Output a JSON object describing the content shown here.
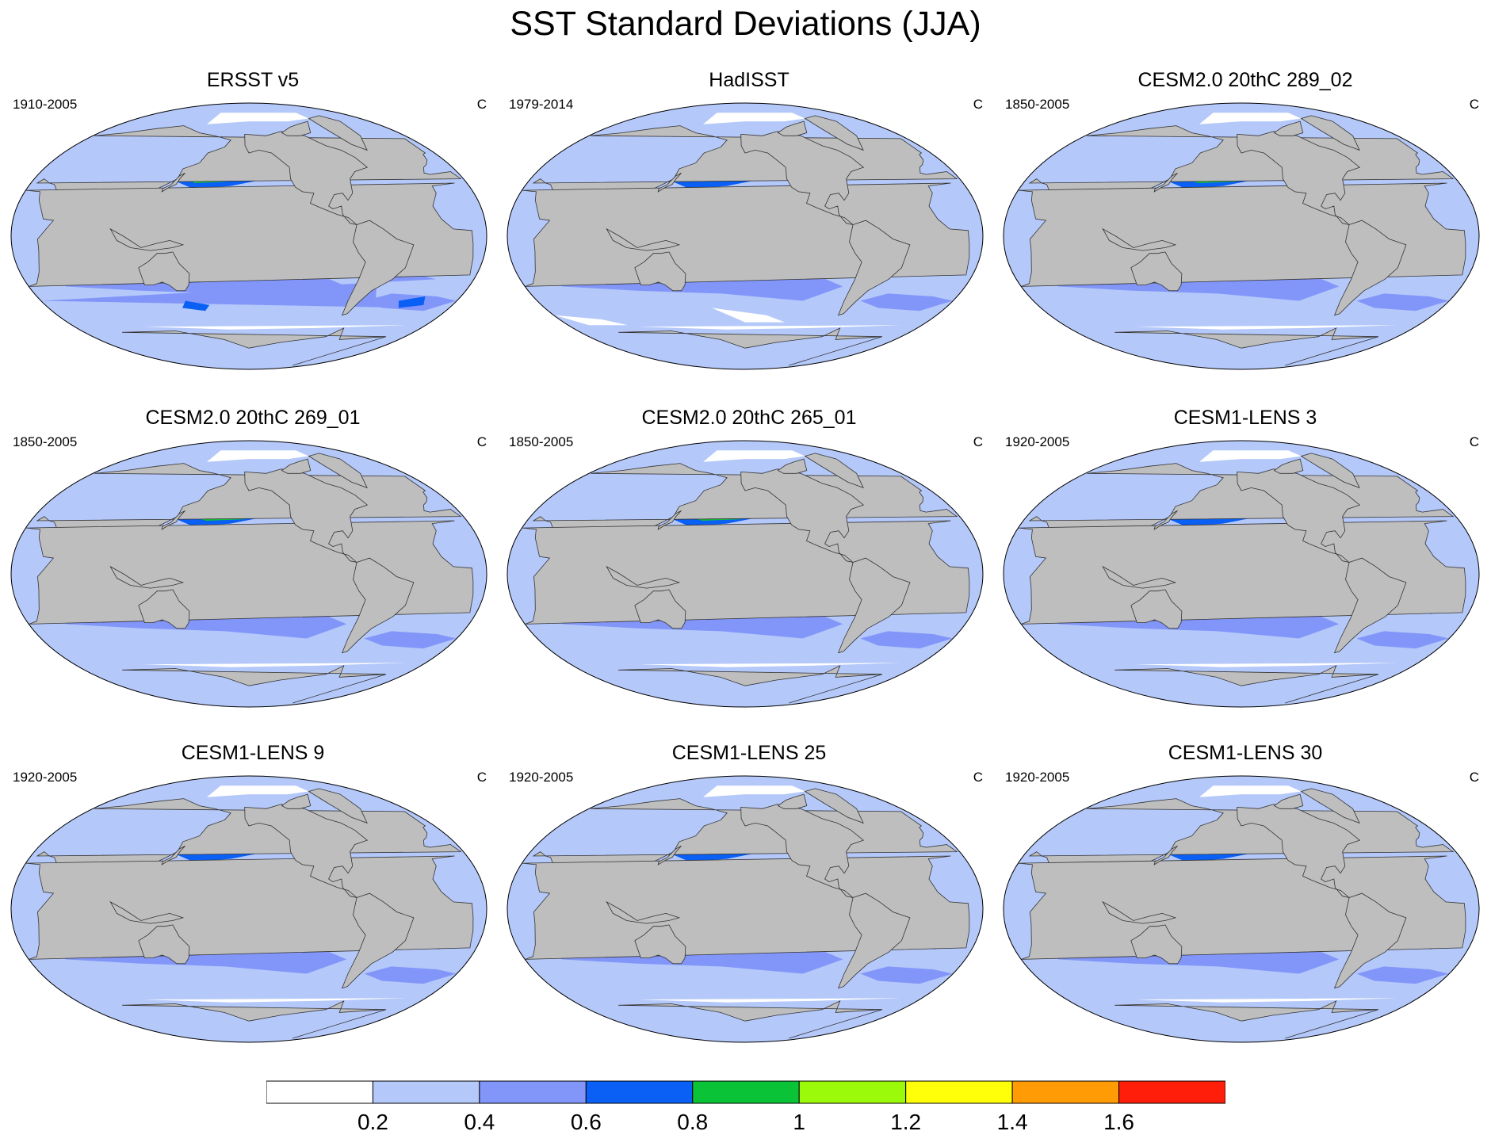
{
  "figure": {
    "title": "SST Standard Deviations (JJA)"
  },
  "panels": [
    {
      "title": "ERSST v5",
      "period": "1910-2005",
      "units": "C",
      "style": "ersst"
    },
    {
      "title": "HadISST",
      "period": "1979-2014",
      "units": "C",
      "style": "hadisst"
    },
    {
      "title": "CESM2.0 20thC 289_02",
      "period": "1850-2005",
      "units": "C",
      "style": "cesm2"
    },
    {
      "title": "CESM2.0 20thC 269_01",
      "period": "1850-2005",
      "units": "C",
      "style": "cesm2"
    },
    {
      "title": "CESM2.0 20thC 265_01",
      "period": "1850-2005",
      "units": "C",
      "style": "cesm2"
    },
    {
      "title": "CESM1-LENS 3",
      "period": "1920-2005",
      "units": "C",
      "style": "lens"
    },
    {
      "title": "CESM1-LENS 9",
      "period": "1920-2005",
      "units": "C",
      "style": "lens"
    },
    {
      "title": "CESM1-LENS 25",
      "period": "1920-2005",
      "units": "C",
      "style": "lens"
    },
    {
      "title": "CESM1-LENS 30",
      "period": "1920-2005",
      "units": "C",
      "style": "lens"
    }
  ],
  "colorbar": {
    "levels": [
      0.2,
      0.4,
      0.6,
      0.8,
      1.0,
      1.2,
      1.4,
      1.6
    ],
    "labels": [
      "0.2",
      "0.4",
      "0.6",
      "0.8",
      "1",
      "1.2",
      "1.4",
      "1.6"
    ],
    "colors": [
      "#ffffff",
      "#b4c8fa",
      "#8296fa",
      "#0a5ff5",
      "#0ac337",
      "#9bfa0a",
      "#ffff0a",
      "#ff9b05",
      "#ff1e0a"
    ]
  },
  "map": {
    "projection": "Robinson (Pacific-centered)",
    "land_color": "#bebebe",
    "ocean_background_color": "#b4c8fa"
  }
}
